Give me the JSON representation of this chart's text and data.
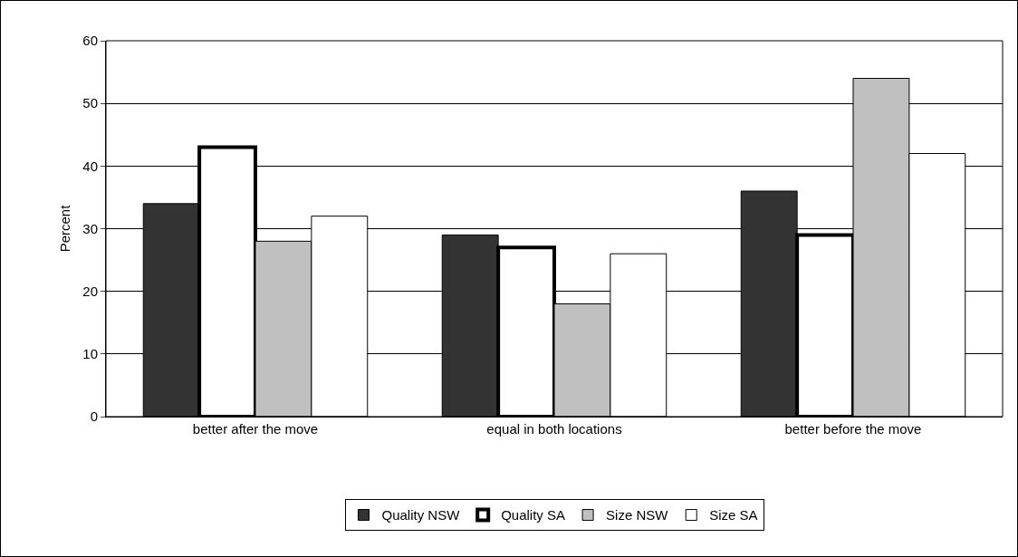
{
  "chart_data": {
    "type": "bar",
    "ylabel": "Percent",
    "categories": [
      "better after the move",
      "equal in both locations",
      "better before the move"
    ],
    "series": [
      {
        "name": "Quality NSW",
        "color": "#333333",
        "values": [
          34,
          29,
          36
        ]
      },
      {
        "name": "Quality SA",
        "color": "#ffffff",
        "values": [
          43,
          27,
          29
        ]
      },
      {
        "name": "Size NSW",
        "color": "#c0c0c0",
        "values": [
          28,
          18,
          54
        ]
      },
      {
        "name": "Size SA",
        "color": "#ffffff",
        "values": [
          32,
          26,
          42
        ]
      }
    ],
    "ylim": [
      0,
      60
    ],
    "yticks": [
      0,
      10,
      20,
      30,
      40,
      50,
      60
    ],
    "grid": "y",
    "legend": "bottom"
  }
}
